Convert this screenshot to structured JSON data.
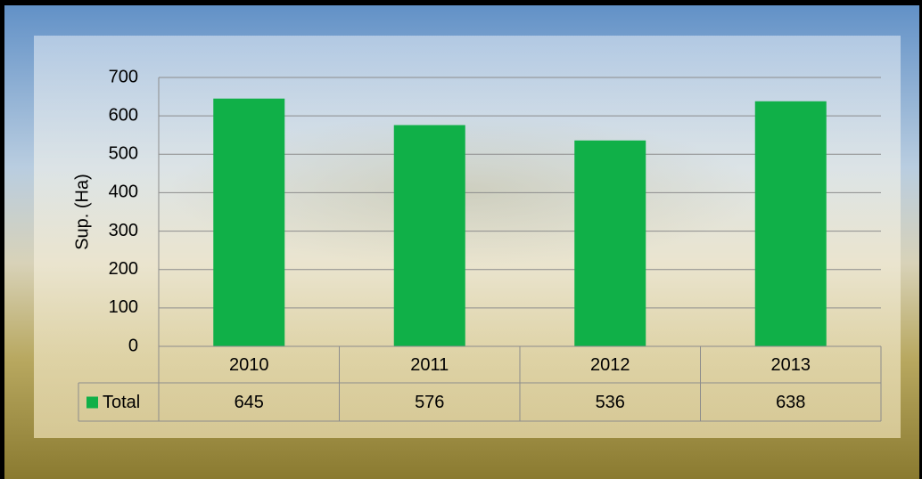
{
  "chart_data": {
    "type": "bar",
    "y_label": "Sup. (Ha)",
    "categories": [
      "2010",
      "2011",
      "2012",
      "2013"
    ],
    "series": [
      {
        "name": "Total",
        "color": "#10b048",
        "values": [
          645,
          576,
          536,
          638
        ]
      }
    ],
    "ylim": [
      0,
      700
    ],
    "yticks": [
      0,
      100,
      200,
      300,
      400,
      500,
      600,
      700
    ],
    "grid": true,
    "data_table": true
  }
}
